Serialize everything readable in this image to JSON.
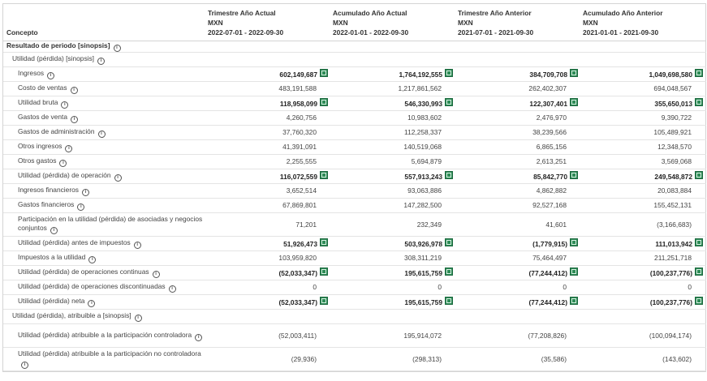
{
  "header": {
    "concept": "Concepto",
    "periods": [
      {
        "title": "Trimestre Año Actual",
        "currency": "MXN",
        "range": "2022-07-01 - 2022-09-30"
      },
      {
        "title": "Acumulado Año Actual",
        "currency": "MXN",
        "range": "2022-01-01 - 2022-09-30"
      },
      {
        "title": "Trimestre Año Anterior",
        "currency": "MXN",
        "range": "2021-07-01 - 2021-09-30"
      },
      {
        "title": "Acumulado Año Anterior",
        "currency": "MXN",
        "range": "2021-01-01 - 2021-09-30"
      }
    ]
  },
  "rows": [
    {
      "kind": "sec",
      "label": "Resultado de periodo [sinopsis]"
    },
    {
      "kind": "sub",
      "label": "Utilidad (pérdida) [sinopsis]"
    },
    {
      "kind": "item",
      "label": "Ingresos",
      "bold": true,
      "excel": true,
      "values": [
        "602,149,687",
        "1,764,192,555",
        "384,709,708",
        "1,049,698,580"
      ]
    },
    {
      "kind": "item",
      "label": "Costo de ventas",
      "values": [
        "483,191,588",
        "1,217,861,562",
        "262,402,307",
        "694,048,567"
      ]
    },
    {
      "kind": "item",
      "label": "Utilidad bruta",
      "bold": true,
      "excel": true,
      "values": [
        "118,958,099",
        "546,330,993",
        "122,307,401",
        "355,650,013"
      ]
    },
    {
      "kind": "item",
      "label": "Gastos de venta",
      "values": [
        "4,260,756",
        "10,983,602",
        "2,476,970",
        "9,390,722"
      ]
    },
    {
      "kind": "item",
      "label": "Gastos de administración",
      "values": [
        "37,760,320",
        "112,258,337",
        "38,239,566",
        "105,489,921"
      ]
    },
    {
      "kind": "item",
      "label": "Otros ingresos",
      "values": [
        "41,391,091",
        "140,519,068",
        "6,865,156",
        "12,348,570"
      ]
    },
    {
      "kind": "item",
      "label": "Otros gastos",
      "values": [
        "2,255,555",
        "5,694,879",
        "2,613,251",
        "3,569,068"
      ]
    },
    {
      "kind": "item",
      "label": "Utilidad (pérdida) de operación",
      "bold": true,
      "excel": true,
      "values": [
        "116,072,559",
        "557,913,243",
        "85,842,770",
        "249,548,872"
      ]
    },
    {
      "kind": "item",
      "label": "Ingresos financieros",
      "values": [
        "3,652,514",
        "93,063,886",
        "4,862,882",
        "20,083,884"
      ]
    },
    {
      "kind": "item",
      "label": "Gastos financieros",
      "values": [
        "67,869,801",
        "147,282,500",
        "92,527,168",
        "155,452,131"
      ]
    },
    {
      "kind": "item",
      "tall": true,
      "label": "Participación en la utilidad (pérdida) de asociadas y negocios conjuntos",
      "values": [
        "71,201",
        "232,349",
        "41,601",
        "(3,166,683)"
      ]
    },
    {
      "kind": "item",
      "label": "Utilidad (pérdida) antes de impuestos",
      "bold": true,
      "excel": true,
      "values": [
        "51,926,473",
        "503,926,978",
        "(1,779,915)",
        "111,013,942"
      ]
    },
    {
      "kind": "item",
      "label": "Impuestos a la utilidad",
      "values": [
        "103,959,820",
        "308,311,219",
        "75,464,497",
        "211,251,718"
      ]
    },
    {
      "kind": "item",
      "label": "Utilidad (pérdida) de operaciones continuas",
      "bold": true,
      "excel": true,
      "values": [
        "(52,033,347)",
        "195,615,759",
        "(77,244,412)",
        "(100,237,776)"
      ]
    },
    {
      "kind": "item",
      "label": "Utilidad (pérdida) de operaciones discontinuadas",
      "values": [
        "0",
        "0",
        "0",
        "0"
      ]
    },
    {
      "kind": "item",
      "label": "Utilidad (pérdida) neta",
      "bold": true,
      "excel": true,
      "values": [
        "(52,033,347)",
        "195,615,759",
        "(77,244,412)",
        "(100,237,776)"
      ]
    },
    {
      "kind": "sub",
      "label": "Utilidad (pérdida), atribuible a [sinopsis]"
    },
    {
      "kind": "item",
      "tall": true,
      "label": "Utilidad (pérdida) atribuible a la participación controladora",
      "values": [
        "(52,003,411)",
        "195,914,072",
        "(77,208,826)",
        "(100,094,174)"
      ]
    },
    {
      "kind": "item",
      "tall": true,
      "label": "Utilidad (pérdida) atribuible a la participación no controladora",
      "values": [
        "(29,936)",
        "(298,313)",
        "(35,586)",
        "(143,602)"
      ]
    }
  ],
  "icons": {
    "info": "info-icon",
    "excel": "excel-icon",
    "info_glyph": "i",
    "excel_color": "#2e8b57"
  }
}
